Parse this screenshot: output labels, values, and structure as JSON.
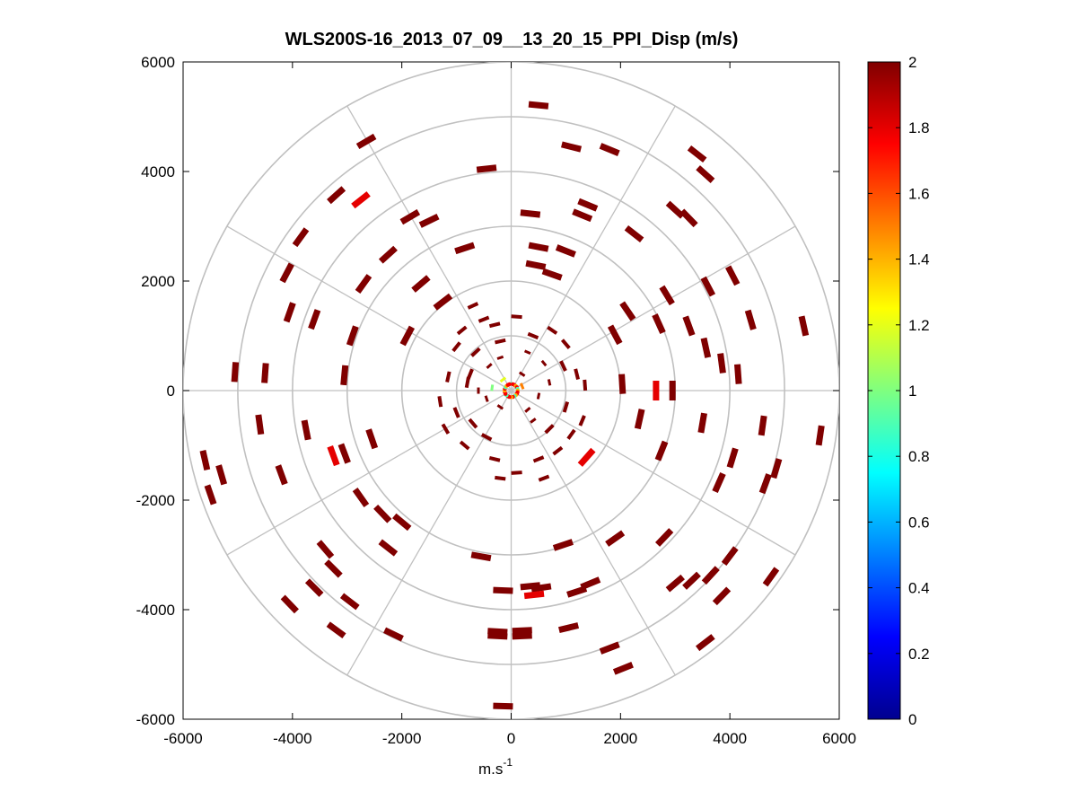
{
  "chart_data": {
    "type": "scatter",
    "title": "WLS200S-16_2013_07_09__13_20_15_PPI_Disp (m/s)",
    "xlabel": "m.s",
    "xlabel_superscript": "-1",
    "ylabel": "",
    "xlim": [
      -6000,
      6000
    ],
    "ylim": [
      -6000,
      6000
    ],
    "xticks": [
      "-6000",
      "-4000",
      "-2000",
      "0",
      "2000",
      "4000",
      "6000"
    ],
    "yticks": [
      "6000",
      "4000",
      "2000",
      "0",
      "-2000",
      "-4000",
      "-6000"
    ],
    "polar_grid": true,
    "range_rings": [
      1000,
      2000,
      3000,
      4000,
      5000,
      6000
    ],
    "spoke_angles_deg": [
      0,
      30,
      60,
      90,
      120,
      150,
      180,
      210,
      240,
      270,
      300,
      330
    ],
    "colorbar": {
      "min": 0,
      "max": 2,
      "colormap": "jet",
      "ticks": [
        "2",
        "1.8",
        "1.6",
        "1.4",
        "1.2",
        "1",
        "0.8",
        "0.6",
        "0.4",
        "0.2",
        "0"
      ]
    },
    "colors": {
      "dark_red": "#800000",
      "red": "#ff2000",
      "grid": "#c0c0c0"
    },
    "note_points": "Each point: x (m), y (m), value (m/s)",
    "points": [
      [
        500,
        5210,
        2
      ],
      [
        1100,
        4450,
        2
      ],
      [
        1800,
        4400,
        2
      ],
      [
        -2650,
        4550,
        2
      ],
      [
        -450,
        4050,
        2
      ],
      [
        3400,
        4320,
        2
      ],
      [
        3550,
        3950,
        2
      ],
      [
        -3200,
        3570,
        2
      ],
      [
        -2750,
        3480,
        1.8
      ],
      [
        -1850,
        3170,
        2
      ],
      [
        -1500,
        3100,
        2
      ],
      [
        1400,
        3390,
        2
      ],
      [
        1300,
        3200,
        2
      ],
      [
        350,
        3230,
        2
      ],
      [
        3000,
        3300,
        2
      ],
      [
        3250,
        3150,
        2
      ],
      [
        -3850,
        2800,
        2
      ],
      [
        -2250,
        2480,
        2
      ],
      [
        -850,
        2600,
        2
      ],
      [
        500,
        2620,
        2
      ],
      [
        1000,
        2550,
        2
      ],
      [
        2250,
        2860,
        2
      ],
      [
        -4100,
        2150,
        2
      ],
      [
        -1650,
        1950,
        2
      ],
      [
        -2700,
        1950,
        2
      ],
      [
        450,
        2290,
        2
      ],
      [
        750,
        2120,
        2
      ],
      [
        4050,
        2100,
        2
      ],
      [
        3600,
        1900,
        2
      ],
      [
        2850,
        1740,
        2
      ],
      [
        -4050,
        1430,
        2
      ],
      [
        -3600,
        1300,
        2
      ],
      [
        -1250,
        1620,
        2
      ],
      [
        2130,
        1450,
        2
      ],
      [
        4380,
        1290,
        2
      ],
      [
        5350,
        1180,
        2
      ],
      [
        2700,
        1220,
        2
      ],
      [
        3250,
        1180,
        2
      ],
      [
        1900,
        1020,
        2
      ],
      [
        -1900,
        1000,
        2
      ],
      [
        -2900,
        1000,
        2
      ],
      [
        3560,
        780,
        2
      ],
      [
        3850,
        500,
        2
      ],
      [
        4150,
        300,
        2
      ],
      [
        -5050,
        340,
        2
      ],
      [
        -4500,
        320,
        2
      ],
      [
        -3050,
        280,
        2
      ],
      [
        2030,
        120,
        2
      ],
      [
        2650,
        0,
        1.8
      ],
      [
        2950,
        0,
        2
      ],
      [
        -4600,
        -620,
        2
      ],
      [
        -3750,
        -720,
        2
      ],
      [
        -2550,
        -880,
        2
      ],
      [
        -3250,
        -1190,
        1.8
      ],
      [
        -3050,
        -1150,
        2
      ],
      [
        -4200,
        -1540,
        2
      ],
      [
        -5600,
        -1270,
        2
      ],
      [
        -5300,
        -1540,
        2
      ],
      [
        -5500,
        -1900,
        2
      ],
      [
        2350,
        -520,
        2
      ],
      [
        2750,
        -1100,
        2
      ],
      [
        3500,
        -590,
        2
      ],
      [
        4600,
        -640,
        2
      ],
      [
        5650,
        -820,
        2
      ],
      [
        4050,
        -1230,
        2
      ],
      [
        3800,
        -1680,
        2
      ],
      [
        4850,
        -1420,
        2
      ],
      [
        4650,
        -1700,
        2
      ],
      [
        1380,
        -1220,
        1.8
      ],
      [
        -2750,
        -1950,
        2
      ],
      [
        -2350,
        -2250,
        2
      ],
      [
        -2000,
        -2400,
        2
      ],
      [
        -3400,
        -2900,
        2
      ],
      [
        -3250,
        -3250,
        2
      ],
      [
        -2250,
        -2870,
        2
      ],
      [
        -3600,
        -3600,
        2
      ],
      [
        -4050,
        -3900,
        2
      ],
      [
        -2950,
        -3850,
        2
      ],
      [
        -2150,
        -4450,
        2
      ],
      [
        -3200,
        -4370,
        2
      ],
      [
        -550,
        -3030,
        2
      ],
      [
        -150,
        -3650,
        2
      ],
      [
        350,
        -3570,
        2
      ],
      [
        550,
        -3600,
        2
      ],
      [
        420,
        -3730,
        1.8
      ],
      [
        1450,
        -3520,
        2
      ],
      [
        1200,
        -3670,
        2
      ],
      [
        -250,
        -4400,
        2
      ],
      [
        200,
        -4380,
        2
      ],
      [
        1050,
        -4330,
        2
      ],
      [
        -250,
        -4480,
        2
      ],
      [
        200,
        -4480,
        2
      ],
      [
        1800,
        -4700,
        2
      ],
      [
        2050,
        -5070,
        2
      ],
      [
        3000,
        -3520,
        2
      ],
      [
        3300,
        -3470,
        2
      ],
      [
        3850,
        -3750,
        2
      ],
      [
        3650,
        -3370,
        2
      ],
      [
        4000,
        -3020,
        2
      ],
      [
        4750,
        -3400,
        2
      ],
      [
        3550,
        -4600,
        2
      ],
      [
        -150,
        -5760,
        2
      ],
      [
        1900,
        -2700,
        2
      ],
      [
        950,
        -2820,
        2
      ],
      [
        2800,
        -2680,
        2
      ],
      [
        -700,
        1550,
        2
      ],
      [
        -500,
        1300,
        2
      ],
      [
        -900,
        1100,
        2
      ],
      [
        -300,
        1200,
        2
      ],
      [
        -1000,
        800,
        2
      ],
      [
        -650,
        700,
        2
      ],
      [
        -200,
        900,
        2
      ],
      [
        400,
        1000,
        2
      ],
      [
        750,
        1100,
        2
      ],
      [
        1000,
        850,
        2
      ],
      [
        300,
        700,
        2
      ],
      [
        600,
        500,
        2
      ],
      [
        950,
        450,
        2
      ],
      [
        1200,
        300,
        2
      ],
      [
        1350,
        100,
        2
      ],
      [
        -400,
        450,
        2
      ],
      [
        -750,
        300,
        2
      ],
      [
        -1150,
        250,
        2
      ],
      [
        -1300,
        -200,
        2
      ],
      [
        -1000,
        -400,
        2
      ],
      [
        -700,
        -600,
        2
      ],
      [
        -450,
        -850,
        2
      ],
      [
        -850,
        -1000,
        2
      ],
      [
        -1200,
        -700,
        2
      ],
      [
        -300,
        -1250,
        2
      ],
      [
        100,
        -1500,
        2
      ],
      [
        500,
        -1250,
        2
      ],
      [
        850,
        -1100,
        2
      ],
      [
        1100,
        -800,
        2
      ],
      [
        700,
        -700,
        2
      ],
      [
        400,
        -550,
        2
      ],
      [
        1000,
        -300,
        2
      ],
      [
        1300,
        -550,
        2
      ],
      [
        -200,
        -1600,
        2
      ],
      [
        600,
        -1600,
        2
      ],
      [
        -450,
        -150,
        2
      ],
      [
        -200,
        -300,
        2
      ],
      [
        300,
        -350,
        2
      ],
      [
        500,
        -100,
        2
      ],
      [
        700,
        150,
        2
      ],
      [
        -600,
        0,
        2
      ],
      [
        -800,
        150,
        2
      ],
      [
        200,
        300,
        2
      ],
      [
        -200,
        600,
        2
      ],
      [
        100,
        1350,
        2
      ],
      [
        -150,
        200,
        1.2
      ],
      [
        200,
        80,
        1.5
      ],
      [
        -80,
        -100,
        0.9
      ],
      [
        -350,
        50,
        1.0
      ]
    ]
  }
}
